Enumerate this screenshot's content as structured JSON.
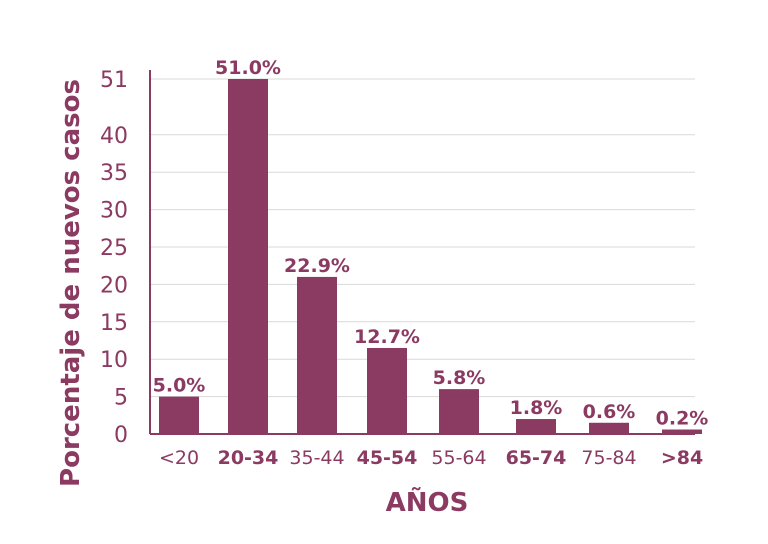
{
  "chart_data": {
    "type": "bar",
    "categories": [
      "<20",
      "20-34",
      "35-44",
      "45-54",
      "55-64",
      "65-74",
      "75-84",
      ">84"
    ],
    "bold_categories": [
      "20-34",
      "45-54",
      "65-74",
      ">84"
    ],
    "values": [
      5.0,
      51.0,
      22.9,
      12.7,
      5.8,
      1.8,
      0.6,
      0.2
    ],
    "data_labels": [
      "5.0%",
      "51.0%",
      "22.9%",
      "12.7%",
      "5.8%",
      "1.8%",
      "0.6%",
      "0.2%"
    ],
    "display_heights": [
      5,
      51,
      21,
      11.5,
      6,
      2,
      1.5,
      0.6
    ],
    "y_ticks": [
      0,
      5,
      10,
      15,
      20,
      25,
      30,
      35,
      40,
      51
    ],
    "y_tick_labels": [
      "0",
      "5",
      "10",
      "15",
      "20",
      "25",
      "30",
      "35",
      "40",
      "51"
    ],
    "xlabel": "AÑOS",
    "ylabel": "Porcentaje de nuevos casos",
    "title": "",
    "grid": true,
    "colors": {
      "bar": "#8b3a62",
      "text": "#8b3a62",
      "grid": "#d9d9d9",
      "axis": "#8b3a62"
    }
  }
}
